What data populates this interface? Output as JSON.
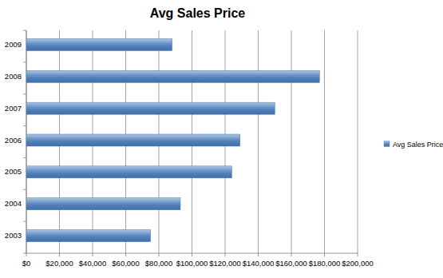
{
  "chart_data": {
    "type": "bar",
    "title": "Avg Sales Price",
    "orientation": "horizontal",
    "categories": [
      "2003",
      "2004",
      "2005",
      "2006",
      "2007",
      "2008",
      "2009"
    ],
    "series": [
      {
        "name": "Avg Sales Price",
        "color": "#4f81bd",
        "values": [
          75000,
          93000,
          124000,
          129000,
          150000,
          177000,
          88000
        ]
      }
    ],
    "xlim": [
      0,
      200000
    ],
    "xticks": [
      {
        "value": 0,
        "label": "$0"
      },
      {
        "value": 20000,
        "label": "$20,000"
      },
      {
        "value": 40000,
        "label": "$40,000"
      },
      {
        "value": 60000,
        "label": "$60,000"
      },
      {
        "value": 80000,
        "label": "$80,000"
      },
      {
        "value": 100000,
        "label": "$100,000"
      },
      {
        "value": 120000,
        "label": "$120,000"
      },
      {
        "value": 140000,
        "label": "$140,000"
      },
      {
        "value": 160000,
        "label": "$160,000"
      },
      {
        "value": 180000,
        "label": "$180,000"
      },
      {
        "value": 200000,
        "label": "$200,000"
      }
    ],
    "grid": true,
    "legend": "right"
  }
}
